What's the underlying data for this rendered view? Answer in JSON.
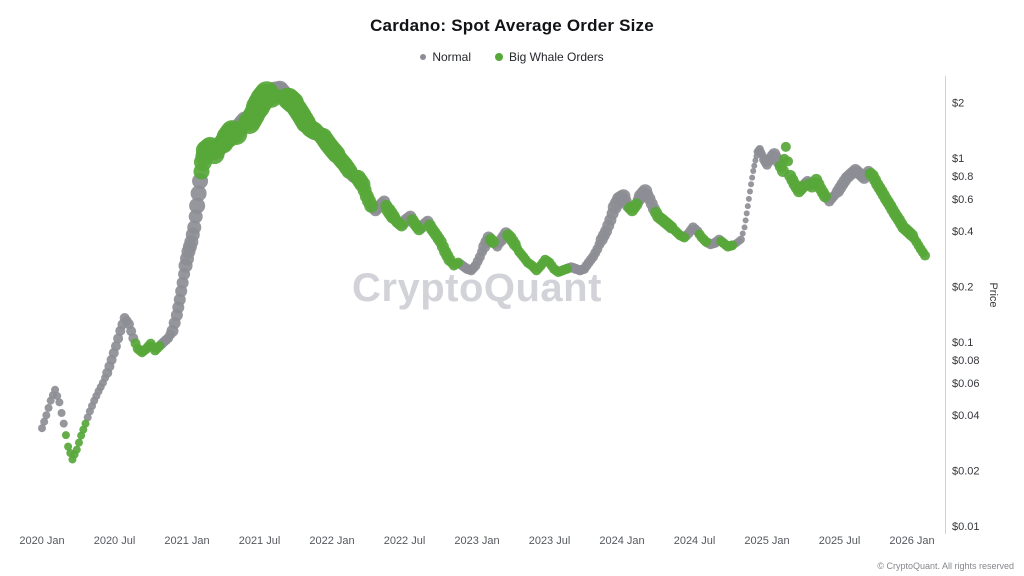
{
  "header": {
    "title": "Cardano: Spot Average Order Size",
    "legend": [
      {
        "label": "Normal",
        "color_key": "normal"
      },
      {
        "label": "Big Whale Orders",
        "color_key": "whale"
      }
    ]
  },
  "watermark": "CryptoQuant",
  "footer": "© CryptoQuant. All rights reserved",
  "colors": {
    "normal": "#8d8d95",
    "whale": "#57a73a",
    "axis": "#d0d0d5",
    "watermark": "#d2d2d9"
  },
  "chart_data": {
    "type": "scatter",
    "title": "Cardano: Spot Average Order Size",
    "ylabel": "Price",
    "y_scale": "log",
    "ylim": [
      0.009,
      2.8
    ],
    "grid": false,
    "legend_position": "top-center",
    "series_legend": [
      "Normal",
      "Big Whale Orders"
    ],
    "x_ticks": [
      {
        "label": "2020 Jan",
        "t": 2020.0
      },
      {
        "label": "2020 Jul",
        "t": 2020.5
      },
      {
        "label": "2021 Jan",
        "t": 2021.0
      },
      {
        "label": "2021 Jul",
        "t": 2021.5
      },
      {
        "label": "2022 Jan",
        "t": 2022.0
      },
      {
        "label": "2022 Jul",
        "t": 2022.5
      },
      {
        "label": "2023 Jan",
        "t": 2023.0
      },
      {
        "label": "2023 Jul",
        "t": 2023.5
      },
      {
        "label": "2024 Jan",
        "t": 2024.0
      },
      {
        "label": "2024 Jul",
        "t": 2024.5
      },
      {
        "label": "2025 Jan",
        "t": 2025.0
      },
      {
        "label": "2025 Jul",
        "t": 2025.5
      },
      {
        "label": "2026 Jan",
        "t": 2026.0
      }
    ],
    "y_ticks": [
      {
        "label": "$2",
        "value": 2
      },
      {
        "label": "$1",
        "value": 1
      },
      {
        "label": "$0.8",
        "value": 0.8
      },
      {
        "label": "$0.6",
        "value": 0.6
      },
      {
        "label": "$0.4",
        "value": 0.4
      },
      {
        "label": "$0.2",
        "value": 0.2
      },
      {
        "label": "$0.1",
        "value": 0.1
      },
      {
        "label": "$0.08",
        "value": 0.08
      },
      {
        "label": "$0.06",
        "value": 0.06
      },
      {
        "label": "$0.04",
        "value": 0.04
      },
      {
        "label": "$0.02",
        "value": 0.02
      },
      {
        "label": "$0.01",
        "value": 0.01
      }
    ],
    "points_format": [
      "year_decimal",
      "price_usd",
      "is_big_whale",
      "marker_radius_px"
    ],
    "points": [
      [
        2020.0,
        0.034,
        0,
        4
      ],
      [
        2020.03,
        0.04,
        0,
        4
      ],
      [
        2020.06,
        0.048,
        0,
        4
      ],
      [
        2020.09,
        0.055,
        0,
        4
      ],
      [
        2020.12,
        0.047,
        0,
        4
      ],
      [
        2020.15,
        0.036,
        0,
        4
      ],
      [
        2020.18,
        0.027,
        1,
        4
      ],
      [
        2020.21,
        0.023,
        1,
        4
      ],
      [
        2020.24,
        0.026,
        1,
        4
      ],
      [
        2020.27,
        0.031,
        1,
        4
      ],
      [
        2020.3,
        0.036,
        1,
        4
      ],
      [
        2020.33,
        0.042,
        0,
        4
      ],
      [
        2020.36,
        0.048,
        0,
        4
      ],
      [
        2020.39,
        0.054,
        0,
        4
      ],
      [
        2020.42,
        0.06,
        0,
        4
      ],
      [
        2020.45,
        0.068,
        0,
        5
      ],
      [
        2020.48,
        0.08,
        0,
        5
      ],
      [
        2020.51,
        0.095,
        0,
        5
      ],
      [
        2020.54,
        0.115,
        0,
        5
      ],
      [
        2020.57,
        0.135,
        0,
        5
      ],
      [
        2020.6,
        0.125,
        0,
        5
      ],
      [
        2020.63,
        0.105,
        0,
        5
      ],
      [
        2020.66,
        0.092,
        1,
        5
      ],
      [
        2020.69,
        0.088,
        1,
        5
      ],
      [
        2020.72,
        0.092,
        1,
        5
      ],
      [
        2020.75,
        0.098,
        1,
        5
      ],
      [
        2020.78,
        0.09,
        1,
        5
      ],
      [
        2020.81,
        0.095,
        1,
        5
      ],
      [
        2020.84,
        0.1,
        0,
        5
      ],
      [
        2020.87,
        0.105,
        0,
        5
      ],
      [
        2020.9,
        0.115,
        0,
        6
      ],
      [
        2020.93,
        0.14,
        0,
        6
      ],
      [
        2020.95,
        0.17,
        0,
        6
      ],
      [
        2020.97,
        0.21,
        0,
        6
      ],
      [
        2020.99,
        0.26,
        0,
        7
      ],
      [
        2021.01,
        0.31,
        0,
        7
      ],
      [
        2021.03,
        0.35,
        0,
        7
      ],
      [
        2021.05,
        0.42,
        0,
        7
      ],
      [
        2021.07,
        0.55,
        0,
        8
      ],
      [
        2021.09,
        0.75,
        0,
        8
      ],
      [
        2021.11,
        0.95,
        1,
        9
      ],
      [
        2021.13,
        1.1,
        1,
        10
      ],
      [
        2021.16,
        1.15,
        1,
        10
      ],
      [
        2021.19,
        1.05,
        1,
        10
      ],
      [
        2021.22,
        1.15,
        0,
        9
      ],
      [
        2021.25,
        1.2,
        1,
        10
      ],
      [
        2021.28,
        1.3,
        1,
        11
      ],
      [
        2021.31,
        1.4,
        1,
        11
      ],
      [
        2021.34,
        1.35,
        1,
        11
      ],
      [
        2021.37,
        1.5,
        0,
        9
      ],
      [
        2021.4,
        1.6,
        0,
        9
      ],
      [
        2021.43,
        1.55,
        1,
        11
      ],
      [
        2021.46,
        1.7,
        1,
        11
      ],
      [
        2021.49,
        1.9,
        1,
        12
      ],
      [
        2021.52,
        2.1,
        1,
        12
      ],
      [
        2021.55,
        2.25,
        1,
        12
      ],
      [
        2021.58,
        2.15,
        1,
        11
      ],
      [
        2021.61,
        2.3,
        0,
        10
      ],
      [
        2021.64,
        2.35,
        0,
        9
      ],
      [
        2021.67,
        2.2,
        0,
        9
      ],
      [
        2021.7,
        2.1,
        1,
        11
      ],
      [
        2021.73,
        2.0,
        1,
        11
      ],
      [
        2021.76,
        1.85,
        1,
        10
      ],
      [
        2021.79,
        1.7,
        1,
        10
      ],
      [
        2021.82,
        1.55,
        1,
        10
      ],
      [
        2021.85,
        1.45,
        1,
        9
      ],
      [
        2021.88,
        1.4,
        1,
        9
      ],
      [
        2021.91,
        1.35,
        0,
        8
      ],
      [
        2021.94,
        1.3,
        1,
        9
      ],
      [
        2021.97,
        1.2,
        1,
        9
      ],
      [
        2022.0,
        1.12,
        1,
        9
      ],
      [
        2022.03,
        1.05,
        1,
        9
      ],
      [
        2022.06,
        0.98,
        1,
        8
      ],
      [
        2022.09,
        0.92,
        1,
        8
      ],
      [
        2022.12,
        0.85,
        1,
        8
      ],
      [
        2022.15,
        0.8,
        0,
        7
      ],
      [
        2022.18,
        0.78,
        1,
        8
      ],
      [
        2022.21,
        0.72,
        1,
        8
      ],
      [
        2022.24,
        0.62,
        1,
        7
      ],
      [
        2022.27,
        0.55,
        1,
        7
      ],
      [
        2022.3,
        0.52,
        0,
        6
      ],
      [
        2022.33,
        0.55,
        0,
        6
      ],
      [
        2022.36,
        0.58,
        0,
        6
      ],
      [
        2022.39,
        0.52,
        1,
        7
      ],
      [
        2022.42,
        0.48,
        1,
        7
      ],
      [
        2022.45,
        0.45,
        1,
        6
      ],
      [
        2022.48,
        0.43,
        1,
        6
      ],
      [
        2022.51,
        0.46,
        0,
        6
      ],
      [
        2022.54,
        0.48,
        0,
        6
      ],
      [
        2022.57,
        0.44,
        1,
        6
      ],
      [
        2022.6,
        0.41,
        1,
        6
      ],
      [
        2022.63,
        0.43,
        0,
        6
      ],
      [
        2022.66,
        0.45,
        0,
        6
      ],
      [
        2022.69,
        0.41,
        1,
        6
      ],
      [
        2022.72,
        0.38,
        1,
        6
      ],
      [
        2022.75,
        0.35,
        1,
        6
      ],
      [
        2022.78,
        0.31,
        1,
        6
      ],
      [
        2022.81,
        0.28,
        1,
        6
      ],
      [
        2022.84,
        0.26,
        1,
        5
      ],
      [
        2022.87,
        0.27,
        1,
        5
      ],
      [
        2022.9,
        0.26,
        0,
        5
      ],
      [
        2022.93,
        0.25,
        0,
        5
      ],
      [
        2022.96,
        0.245,
        0,
        5
      ],
      [
        2022.99,
        0.26,
        0,
        5
      ],
      [
        2023.02,
        0.29,
        0,
        5
      ],
      [
        2023.05,
        0.33,
        0,
        6
      ],
      [
        2023.08,
        0.37,
        0,
        6
      ],
      [
        2023.11,
        0.35,
        1,
        6
      ],
      [
        2023.14,
        0.33,
        0,
        5
      ],
      [
        2023.17,
        0.36,
        0,
        6
      ],
      [
        2023.2,
        0.39,
        0,
        6
      ],
      [
        2023.23,
        0.37,
        1,
        6
      ],
      [
        2023.26,
        0.34,
        1,
        6
      ],
      [
        2023.29,
        0.31,
        1,
        5
      ],
      [
        2023.32,
        0.29,
        1,
        5
      ],
      [
        2023.35,
        0.27,
        1,
        5
      ],
      [
        2023.38,
        0.26,
        1,
        5
      ],
      [
        2023.41,
        0.245,
        1,
        5
      ],
      [
        2023.44,
        0.26,
        1,
        5
      ],
      [
        2023.47,
        0.28,
        1,
        5
      ],
      [
        2023.5,
        0.27,
        1,
        5
      ],
      [
        2023.53,
        0.25,
        1,
        5
      ],
      [
        2023.56,
        0.24,
        1,
        5
      ],
      [
        2023.59,
        0.245,
        1,
        5
      ],
      [
        2023.62,
        0.25,
        1,
        5
      ],
      [
        2023.65,
        0.255,
        0,
        5
      ],
      [
        2023.68,
        0.25,
        0,
        5
      ],
      [
        2023.71,
        0.245,
        0,
        5
      ],
      [
        2023.74,
        0.25,
        0,
        5
      ],
      [
        2023.77,
        0.27,
        0,
        5
      ],
      [
        2023.8,
        0.29,
        0,
        5
      ],
      [
        2023.83,
        0.32,
        0,
        5
      ],
      [
        2023.86,
        0.36,
        0,
        6
      ],
      [
        2023.89,
        0.4,
        0,
        6
      ],
      [
        2023.92,
        0.46,
        0,
        6
      ],
      [
        2023.95,
        0.54,
        0,
        7
      ],
      [
        2023.98,
        0.6,
        0,
        7
      ],
      [
        2024.01,
        0.62,
        0,
        7
      ],
      [
        2024.04,
        0.55,
        0,
        6
      ],
      [
        2024.07,
        0.52,
        1,
        6
      ],
      [
        2024.1,
        0.56,
        1,
        6
      ],
      [
        2024.13,
        0.62,
        0,
        7
      ],
      [
        2024.16,
        0.66,
        0,
        7
      ],
      [
        2024.19,
        0.6,
        0,
        6
      ],
      [
        2024.22,
        0.53,
        0,
        6
      ],
      [
        2024.25,
        0.48,
        1,
        6
      ],
      [
        2024.28,
        0.46,
        1,
        6
      ],
      [
        2024.31,
        0.44,
        1,
        6
      ],
      [
        2024.34,
        0.42,
        1,
        6
      ],
      [
        2024.37,
        0.4,
        1,
        5
      ],
      [
        2024.4,
        0.38,
        1,
        5
      ],
      [
        2024.43,
        0.37,
        1,
        5
      ],
      [
        2024.46,
        0.39,
        0,
        5
      ],
      [
        2024.49,
        0.42,
        0,
        5
      ],
      [
        2024.52,
        0.4,
        0,
        5
      ],
      [
        2024.55,
        0.37,
        1,
        5
      ],
      [
        2024.58,
        0.35,
        1,
        5
      ],
      [
        2024.61,
        0.34,
        0,
        5
      ],
      [
        2024.64,
        0.345,
        0,
        5
      ],
      [
        2024.67,
        0.36,
        0,
        5
      ],
      [
        2024.7,
        0.345,
        1,
        5
      ],
      [
        2024.73,
        0.33,
        1,
        5
      ],
      [
        2024.76,
        0.335,
        1,
        5
      ],
      [
        2024.79,
        0.345,
        0,
        4
      ],
      [
        2024.82,
        0.36,
        0,
        4
      ],
      [
        2024.845,
        0.42,
        0,
        3
      ],
      [
        2024.86,
        0.5,
        0,
        3
      ],
      [
        2024.875,
        0.6,
        0,
        3
      ],
      [
        2024.89,
        0.72,
        0,
        3
      ],
      [
        2024.905,
        0.85,
        0,
        3
      ],
      [
        2024.92,
        0.97,
        0,
        3
      ],
      [
        2024.935,
        1.08,
        0,
        4
      ],
      [
        2024.95,
        1.12,
        0,
        4
      ],
      [
        2024.965,
        1.05,
        0,
        4
      ],
      [
        2024.98,
        0.98,
        0,
        5
      ],
      [
        2025.0,
        0.92,
        0,
        5
      ],
      [
        2025.03,
        1.0,
        0,
        6
      ],
      [
        2025.05,
        1.05,
        0,
        6
      ],
      [
        2025.08,
        0.95,
        0,
        6
      ],
      [
        2025.11,
        0.85,
        1,
        6
      ],
      [
        2025.13,
        1.15,
        1,
        5
      ],
      [
        2025.16,
        0.8,
        1,
        6
      ],
      [
        2025.19,
        0.72,
        1,
        6
      ],
      [
        2025.22,
        0.66,
        1,
        6
      ],
      [
        2025.25,
        0.7,
        1,
        6
      ],
      [
        2025.28,
        0.74,
        0,
        6
      ],
      [
        2025.31,
        0.7,
        1,
        6
      ],
      [
        2025.34,
        0.76,
        1,
        6
      ],
      [
        2025.37,
        0.68,
        1,
        6
      ],
      [
        2025.4,
        0.62,
        1,
        6
      ],
      [
        2025.43,
        0.58,
        0,
        5
      ],
      [
        2025.46,
        0.62,
        0,
        5
      ],
      [
        2025.49,
        0.66,
        0,
        6
      ],
      [
        2025.52,
        0.72,
        0,
        6
      ],
      [
        2025.55,
        0.78,
        0,
        6
      ],
      [
        2025.58,
        0.82,
        0,
        6
      ],
      [
        2025.61,
        0.86,
        0,
        6
      ],
      [
        2025.64,
        0.82,
        0,
        6
      ],
      [
        2025.67,
        0.78,
        0,
        6
      ],
      [
        2025.7,
        0.84,
        0,
        6
      ],
      [
        2025.73,
        0.8,
        1,
        6
      ],
      [
        2025.76,
        0.72,
        1,
        6
      ],
      [
        2025.79,
        0.66,
        1,
        6
      ],
      [
        2025.82,
        0.6,
        1,
        6
      ],
      [
        2025.85,
        0.55,
        1,
        6
      ],
      [
        2025.88,
        0.5,
        1,
        6
      ],
      [
        2025.91,
        0.46,
        1,
        6
      ],
      [
        2025.94,
        0.42,
        1,
        6
      ],
      [
        2025.97,
        0.4,
        1,
        6
      ],
      [
        2026.0,
        0.38,
        1,
        6
      ],
      [
        2026.03,
        0.35,
        1,
        5
      ],
      [
        2026.06,
        0.32,
        1,
        5
      ],
      [
        2026.09,
        0.295,
        1,
        5
      ]
    ]
  }
}
